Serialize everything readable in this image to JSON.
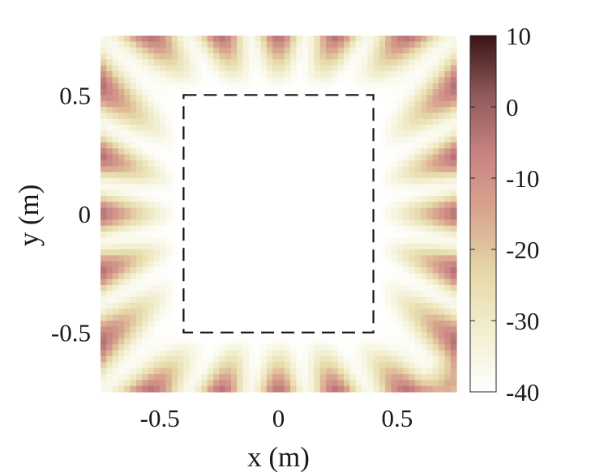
{
  "chart_data": {
    "type": "heatmap",
    "xlabel": "x (m)",
    "ylabel": "y (m)",
    "xlim": [
      -0.75,
      0.75
    ],
    "ylim": [
      -0.75,
      0.75
    ],
    "xticks": [
      -0.5,
      0,
      0.5
    ],
    "xtick_labels": [
      "-0.5",
      "0",
      "0.5"
    ],
    "yticks": [
      -0.5,
      0,
      0.5
    ],
    "ytick_labels": [
      "-0.5",
      "0",
      "0.5"
    ],
    "colorbar": {
      "range": [
        -40,
        10
      ],
      "ticks": [
        10,
        0,
        -10,
        -20,
        -30,
        -40
      ],
      "tick_labels": [
        "10",
        "0",
        "-10",
        "-20",
        "-30",
        "-40"
      ],
      "colors": [
        "#ffffff",
        "#f2efd0",
        "#e6d9a9",
        "#d9a78f",
        "#c98383",
        "#8f5a5a",
        "#3a1414"
      ]
    },
    "region_outline": {
      "style": "dashed",
      "x": [
        -0.4,
        0.4
      ],
      "y": [
        -0.5,
        0.5
      ]
    },
    "field_description_values": {
      "interior_level": -40,
      "edge_level": -10,
      "corner_peak": 5,
      "corner_peak_location": [
        0.72,
        -0.72
      ],
      "radial_lobes": 20
    }
  }
}
